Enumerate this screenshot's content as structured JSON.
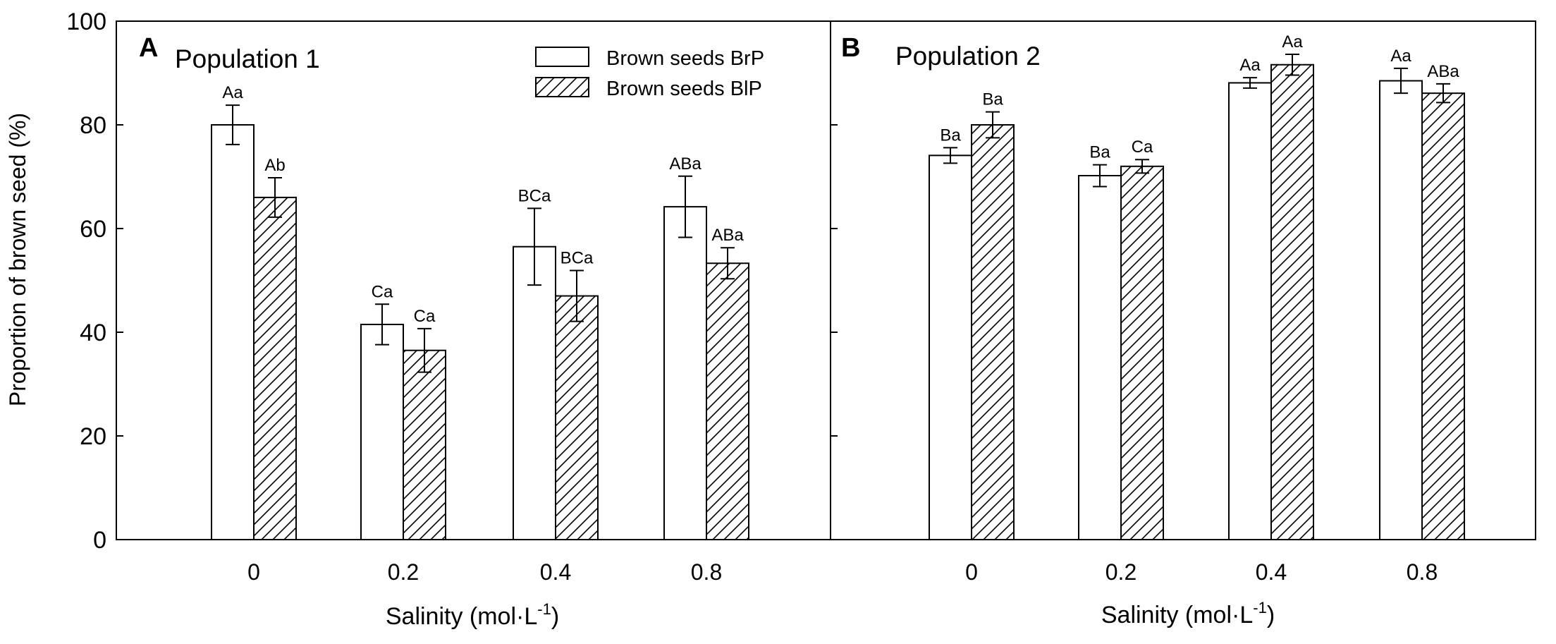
{
  "colors": {
    "background": "#ffffff",
    "ink": "#000000"
  },
  "legend": {
    "items": [
      {
        "label": "Brown seeds BrP",
        "pattern": "open"
      },
      {
        "label": "Brown seeds BlP",
        "pattern": "hatched"
      }
    ]
  },
  "chart_data": [
    {
      "type": "bar",
      "panel_letter": "A",
      "title": "Population 1",
      "xlabel": "Salinity (mol·L",
      "xlabel_exponent": "-1",
      "xlabel_suffix": ")",
      "ylabel": "Proportion of brown seed (%)",
      "ylim": [
        0,
        100
      ],
      "yticks": [
        0,
        20,
        40,
        60,
        80,
        100
      ],
      "categories": [
        "0",
        "0.2",
        "0.4",
        "0.8"
      ],
      "legend": "top-right",
      "series": [
        {
          "name": "Brown seeds BrP",
          "values": [
            80,
            41.5,
            56.5,
            64.2
          ],
          "errors": [
            3.8,
            3.9,
            7.4,
            5.9
          ],
          "labels": [
            "Aa",
            "Ca",
            "BCa",
            "ABa"
          ]
        },
        {
          "name": "Brown seeds BlP",
          "values": [
            66,
            36.5,
            47,
            53.3
          ],
          "errors": [
            3.8,
            4.2,
            4.9,
            3.0
          ],
          "labels": [
            "Ab",
            "Ca",
            "BCa",
            "ABa"
          ]
        }
      ]
    },
    {
      "type": "bar",
      "panel_letter": "B",
      "title": "Population 2",
      "xlabel": "Salinity (mol·L",
      "xlabel_exponent": "-1",
      "xlabel_suffix": ")",
      "ylabel": "",
      "ylim": [
        0,
        100
      ],
      "yticks": [
        0,
        20,
        40,
        60,
        80,
        100
      ],
      "categories": [
        "0",
        "0.2",
        "0.4",
        "0.8"
      ],
      "series": [
        {
          "name": "Brown seeds BrP",
          "values": [
            74.1,
            70.2,
            88.1,
            88.5
          ],
          "errors": [
            1.5,
            2.1,
            1.0,
            2.4
          ],
          "labels": [
            "Ba",
            "Ba",
            "Aa",
            "Aa"
          ]
        },
        {
          "name": "Brown seeds BlP",
          "values": [
            80,
            72,
            91.6,
            86.1
          ],
          "errors": [
            2.5,
            1.3,
            2.0,
            1.8
          ],
          "labels": [
            "Ba",
            "Ca",
            "Aa",
            "ABa"
          ]
        }
      ]
    }
  ]
}
